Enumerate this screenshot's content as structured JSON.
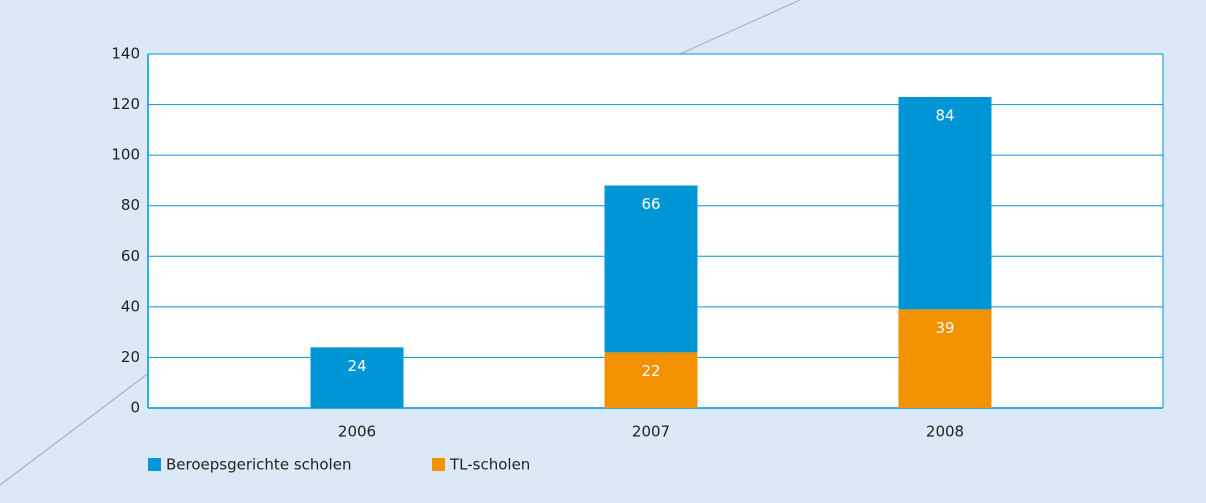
{
  "chart_data": {
    "type": "stacked-bar",
    "categories": [
      "2006",
      "2007",
      "2008"
    ],
    "series": [
      {
        "name": "TL-scholen",
        "color": "#f39200",
        "values": [
          null,
          22,
          39
        ]
      },
      {
        "name": "Beroepsgerichte scholen",
        "color": "#0096d6",
        "values": [
          24,
          66,
          84
        ]
      }
    ],
    "legend_order": [
      1,
      0
    ],
    "ylim": [
      0,
      140
    ],
    "yticks": [
      0,
      20,
      40,
      60,
      80,
      100,
      120,
      140
    ],
    "grid": true
  }
}
